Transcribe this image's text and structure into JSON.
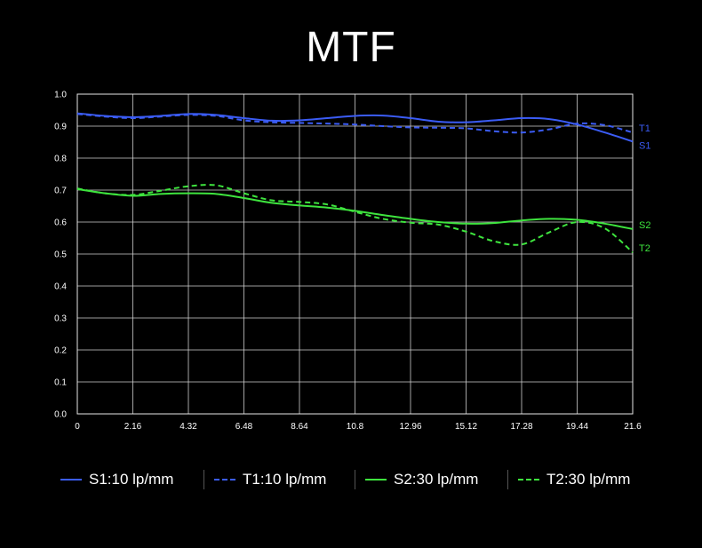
{
  "title": "MTF",
  "chart_data": {
    "type": "line",
    "title": "MTF",
    "xlabel": "",
    "ylabel": "",
    "xlim": [
      0,
      21.6
    ],
    "ylim": [
      0,
      1.0
    ],
    "x_ticks": [
      "0",
      "2.16",
      "4.32",
      "6.48",
      "8.64",
      "10.8",
      "12.96",
      "15.12",
      "17.28",
      "19.44",
      "21.6"
    ],
    "y_ticks": [
      "0.0",
      "0.1",
      "0.2",
      "0.3",
      "0.4",
      "0.5",
      "0.6",
      "0.7",
      "0.8",
      "0.9",
      "1.0"
    ],
    "grid": true,
    "legend_position": "bottom",
    "series": [
      {
        "name": "S1:10 lp/mm",
        "end_label": "S1",
        "color": "#3b5cf5",
        "dash": false,
        "x": [
          0,
          1.08,
          2.16,
          3.24,
          4.32,
          5.4,
          6.48,
          7.56,
          8.64,
          9.72,
          10.8,
          11.88,
          12.96,
          14.04,
          15.12,
          16.2,
          17.28,
          18.36,
          19.44,
          20.52,
          21.6
        ],
        "y": [
          0.94,
          0.932,
          0.928,
          0.932,
          0.938,
          0.935,
          0.925,
          0.917,
          0.918,
          0.925,
          0.932,
          0.933,
          0.925,
          0.914,
          0.912,
          0.918,
          0.925,
          0.922,
          0.905,
          0.88,
          0.852
        ]
      },
      {
        "name": "T1:10 lp/mm",
        "end_label": "T1",
        "color": "#3b5cf5",
        "dash": true,
        "x": [
          0,
          1.08,
          2.16,
          3.24,
          4.32,
          5.4,
          6.48,
          7.56,
          8.64,
          9.72,
          10.8,
          11.88,
          12.96,
          14.04,
          15.12,
          16.2,
          17.28,
          18.36,
          19.44,
          20.52,
          21.6
        ],
        "y": [
          0.938,
          0.93,
          0.925,
          0.93,
          0.935,
          0.932,
          0.918,
          0.912,
          0.91,
          0.908,
          0.905,
          0.9,
          0.896,
          0.895,
          0.893,
          0.884,
          0.88,
          0.89,
          0.908,
          0.903,
          0.88
        ]
      },
      {
        "name": "S2:30 lp/mm",
        "end_label": "S2",
        "color": "#3ee43e",
        "dash": false,
        "x": [
          0,
          1.08,
          2.16,
          3.24,
          4.32,
          5.4,
          6.48,
          7.56,
          8.64,
          9.72,
          10.8,
          11.88,
          12.96,
          14.04,
          15.12,
          16.2,
          17.28,
          18.36,
          19.44,
          20.52,
          21.6
        ],
        "y": [
          0.703,
          0.69,
          0.682,
          0.688,
          0.69,
          0.688,
          0.675,
          0.66,
          0.652,
          0.645,
          0.635,
          0.622,
          0.61,
          0.6,
          0.595,
          0.597,
          0.605,
          0.61,
          0.607,
          0.595,
          0.578
        ]
      },
      {
        "name": "T2:30 lp/mm",
        "end_label": "T2",
        "color": "#3ee43e",
        "dash": true,
        "x": [
          0,
          1.08,
          2.16,
          3.24,
          4.32,
          5.4,
          6.48,
          7.56,
          8.64,
          9.72,
          10.8,
          11.88,
          12.96,
          14.04,
          15.12,
          16.2,
          17.28,
          18.36,
          19.44,
          20.52,
          21.6
        ],
        "y": [
          0.705,
          0.69,
          0.685,
          0.698,
          0.712,
          0.715,
          0.69,
          0.668,
          0.663,
          0.655,
          0.632,
          0.61,
          0.598,
          0.592,
          0.57,
          0.54,
          0.53,
          0.568,
          0.6,
          0.58,
          0.505
        ]
      }
    ]
  }
}
